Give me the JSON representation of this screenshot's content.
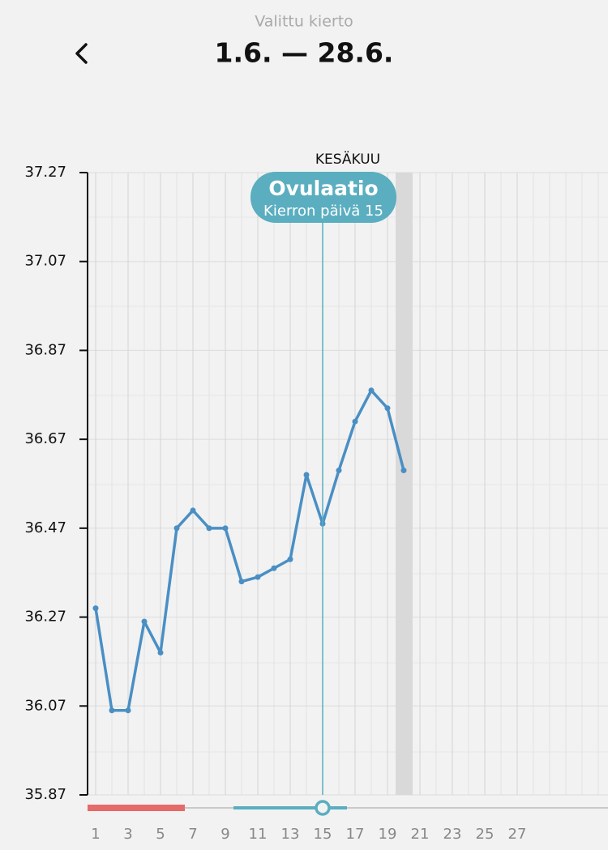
{
  "header": {
    "subtitle": "Valittu kierto",
    "title": "1.6. — 28.6."
  },
  "chart_data": {
    "type": "line",
    "month_label": "KESÄKUU",
    "annotation": {
      "title": "Ovulaatio",
      "subtitle": "Kierron päivä 15"
    },
    "x": [
      1,
      2,
      3,
      4,
      5,
      6,
      7,
      8,
      9,
      10,
      11,
      12,
      13,
      14,
      15,
      16,
      17,
      18,
      19,
      20
    ],
    "series": [
      {
        "color": "#4a8fc4",
        "values": [
          36.29,
          36.06,
          36.06,
          36.26,
          36.19,
          36.47,
          36.51,
          36.47,
          36.47,
          36.35,
          36.36,
          36.38,
          36.4,
          36.59,
          36.48,
          36.6,
          36.71,
          36.78,
          36.74,
          36.6
        ]
      }
    ],
    "xlim": [
      0.5,
      32.6
    ],
    "xticks": [
      1,
      3,
      5,
      7,
      9,
      11,
      13,
      15,
      17,
      19,
      21,
      23,
      25,
      27
    ],
    "ylim": [
      35.87,
      37.27
    ],
    "yticks": [
      {
        "value": 35.87,
        "label": "35.87"
      },
      {
        "value": 36.07,
        "label": "36.07"
      },
      {
        "value": 36.27,
        "label": "36.27"
      },
      {
        "value": 36.47,
        "label": "36.47"
      },
      {
        "value": 36.67,
        "label": "36.67"
      },
      {
        "value": 36.87,
        "label": "36.87"
      },
      {
        "value": 37.07,
        "label": "37.07"
      },
      {
        "value": 37.27,
        "label": "37.27"
      }
    ],
    "grid": true
  }
}
